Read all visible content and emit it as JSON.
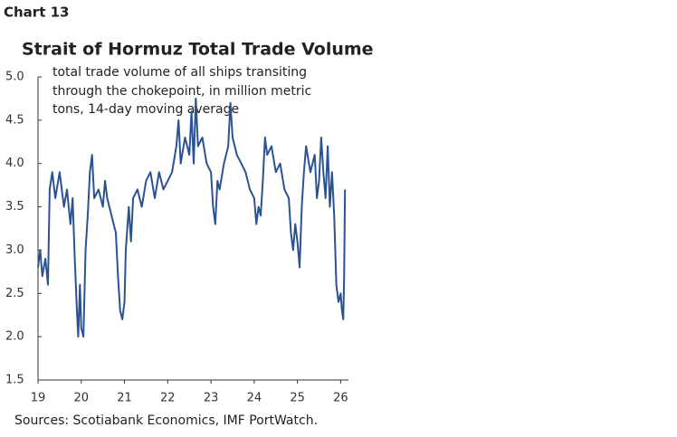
{
  "chart_data": {
    "type": "line",
    "label": "Chart 13",
    "title": "Strait of Hormuz Total Trade Volume",
    "subtitle": [
      "total trade volume of all ships transiting",
      "through the chokepoint, in million metric",
      "tons, 14-day moving average"
    ],
    "source": "Sources: Scotiabank Economics, IMF PortWatch.",
    "xlim": [
      19,
      26.18
    ],
    "xticks": [
      19,
      20,
      21,
      22,
      23,
      24,
      25,
      26
    ],
    "ylim": [
      1.5,
      5
    ],
    "yticks": [
      {
        "value": 5,
        "label": "5.0"
      },
      4.5,
      {
        "value": 4,
        "label": "4.0"
      },
      3.5,
      {
        "value": 3,
        "label": "3.0"
      },
      2.5,
      {
        "value": 2,
        "label": "2.0"
      },
      1.5
    ],
    "grid": false,
    "series": [
      {
        "color": "#2b5393",
        "x": [
          19.0,
          19.05,
          19.1,
          19.17,
          19.23,
          19.27,
          19.33,
          19.4,
          19.5,
          19.6,
          19.67,
          19.75,
          19.8,
          19.85,
          19.9,
          19.93,
          19.97,
          20.0,
          20.05,
          20.1,
          20.15,
          20.2,
          20.25,
          20.3,
          20.4,
          20.5,
          20.55,
          20.6,
          20.7,
          20.8,
          20.85,
          20.9,
          20.95,
          21.0,
          21.03,
          21.1,
          21.15,
          21.2,
          21.3,
          21.4,
          21.5,
          21.6,
          21.7,
          21.8,
          21.9,
          22.0,
          22.1,
          22.2,
          22.25,
          22.3,
          22.4,
          22.5,
          22.55,
          22.6,
          22.65,
          22.7,
          22.8,
          22.9,
          23.0,
          23.05,
          23.1,
          23.15,
          23.2,
          23.3,
          23.4,
          23.45,
          23.5,
          23.6,
          23.7,
          23.8,
          23.9,
          24.0,
          24.05,
          24.1,
          24.15,
          24.2,
          24.25,
          24.3,
          24.4,
          24.5,
          24.6,
          24.7,
          24.8,
          24.85,
          24.9,
          24.95,
          25.0,
          25.05,
          25.1,
          25.15,
          25.2,
          25.3,
          25.4,
          25.45,
          25.5,
          25.55,
          25.6,
          25.65,
          25.7,
          25.75,
          25.8,
          25.85,
          25.9,
          25.95,
          26.0,
          26.03,
          26.06,
          26.08,
          26.1
        ],
        "values": [
          2.8,
          3.0,
          2.7,
          2.9,
          2.6,
          3.7,
          3.9,
          3.6,
          3.9,
          3.5,
          3.7,
          3.3,
          3.6,
          2.9,
          2.3,
          2.0,
          2.6,
          2.1,
          2.0,
          3.0,
          3.4,
          3.9,
          4.1,
          3.6,
          3.7,
          3.5,
          3.8,
          3.6,
          3.4,
          3.2,
          2.7,
          2.3,
          2.2,
          2.4,
          3.0,
          3.5,
          3.1,
          3.6,
          3.7,
          3.5,
          3.8,
          3.9,
          3.6,
          3.9,
          3.7,
          3.8,
          3.9,
          4.2,
          4.5,
          4.0,
          4.3,
          4.1,
          4.6,
          4.0,
          4.75,
          4.2,
          4.3,
          4.0,
          3.9,
          3.5,
          3.3,
          3.8,
          3.7,
          4.0,
          4.2,
          4.7,
          4.3,
          4.1,
          4.0,
          3.9,
          3.7,
          3.6,
          3.3,
          3.5,
          3.4,
          3.8,
          4.3,
          4.1,
          4.2,
          3.9,
          4.0,
          3.7,
          3.6,
          3.2,
          3.0,
          3.3,
          3.1,
          2.8,
          3.5,
          3.9,
          4.2,
          3.9,
          4.1,
          3.6,
          3.8,
          4.3,
          3.9,
          3.6,
          4.2,
          3.5,
          3.9,
          3.4,
          2.6,
          2.4,
          2.5,
          2.3,
          2.2,
          2.7,
          3.7
        ]
      }
    ]
  }
}
